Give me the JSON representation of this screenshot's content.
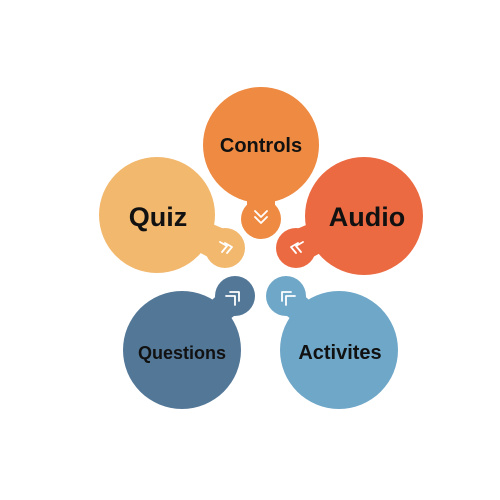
{
  "diagram": {
    "petals": [
      {
        "id": "controls",
        "label": "Controls",
        "color": "#EE8A41",
        "icon": "double-chevron-down-icon"
      },
      {
        "id": "audio",
        "label": "Audio",
        "color": "#EC6A42",
        "icon": "double-chevron-left-icon"
      },
      {
        "id": "activites",
        "label": "Activites",
        "color": "#6FA7C8",
        "icon": "corner-arrow-up-left-icon"
      },
      {
        "id": "questions",
        "label": "Questions",
        "color": "#537797",
        "icon": "corner-arrow-up-right-icon"
      },
      {
        "id": "quiz",
        "label": "Quiz",
        "color": "#F2B86E",
        "icon": "double-chevron-right-icon"
      }
    ]
  }
}
